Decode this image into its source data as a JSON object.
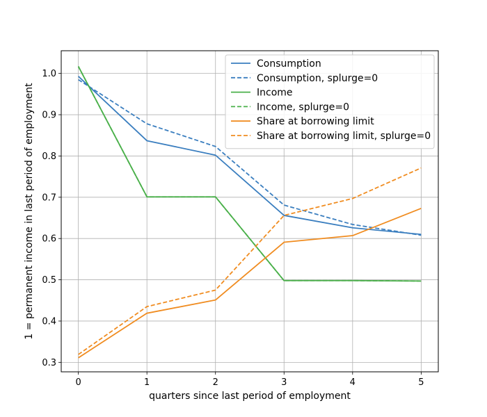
{
  "chart_data": {
    "type": "line",
    "title": "",
    "xlabel": "quarters since last period of employment",
    "ylabel": "1 = permanent income in last period of employment",
    "x": [
      0,
      1,
      2,
      3,
      4,
      5
    ],
    "xlim": [
      -0.25,
      5.25
    ],
    "ylim": [
      0.277,
      1.055
    ],
    "xticks": [
      0,
      1,
      2,
      3,
      4,
      5
    ],
    "yticks": [
      0.3,
      0.4,
      0.5,
      0.6,
      0.7,
      0.8,
      0.9,
      1.0
    ],
    "ytick_labels": [
      "0.3",
      "0.4",
      "0.5",
      "0.6",
      "0.7",
      "0.8",
      "0.9",
      "1.0"
    ],
    "grid": true,
    "legend_position": "top-right",
    "series": [
      {
        "name": "Consumption",
        "color": "#3a7ebf",
        "dash": "solid",
        "values": [
          0.993,
          0.837,
          0.802,
          0.656,
          0.626,
          0.61
        ]
      },
      {
        "name": "Consumption, splurge=0",
        "color": "#3a7ebf",
        "dash": "dashed",
        "values": [
          0.985,
          0.878,
          0.823,
          0.681,
          0.634,
          0.608
        ]
      },
      {
        "name": "Income",
        "color": "#4ab04a",
        "dash": "solid",
        "values": [
          1.017,
          0.701,
          0.701,
          0.498,
          0.498,
          0.497
        ]
      },
      {
        "name": "Income, splurge=0",
        "color": "#4ab04a",
        "dash": "dashed",
        "values": [
          1.017,
          0.701,
          0.701,
          0.498,
          0.498,
          0.497
        ]
      },
      {
        "name": "Share at borrowing limit",
        "color": "#f08c20",
        "dash": "solid",
        "values": [
          0.311,
          0.419,
          0.451,
          0.591,
          0.607,
          0.673
        ]
      },
      {
        "name": "Share at borrowing limit, splurge=0",
        "color": "#f08c20",
        "dash": "dashed",
        "values": [
          0.319,
          0.435,
          0.475,
          0.656,
          0.697,
          0.771
        ]
      }
    ]
  }
}
